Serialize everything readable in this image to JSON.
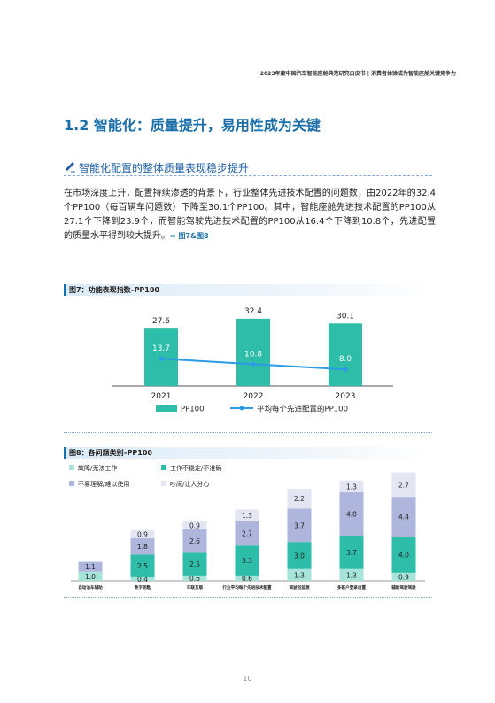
{
  "header": {
    "text": "2023年度中国汽车智能座舱典范研究白皮书  |  消费者体验成为智能座舱关键竞争力"
  },
  "section": {
    "title": "1.2 智能化：质量提升，易用性成为关键",
    "subheading": "智能化配置的整体质量表现稳步提升"
  },
  "body": {
    "paragraph": "在市场深度上升，配置持续渗透的背景下，行业整体先进技术配置的问题数，由2022年的32.4个PP100（每百辆车问题数）下降至30.1个PP100。其中，智能座舱先进技术配置的PP100从27.1个下降到23.9个，而智能驾驶先进技术配置的PP100从16.4个下降到10.8个，先进配置的质量水平得到较大提升。",
    "ref": "➡ 图7&图8"
  },
  "colors": {
    "bar_teal": "#2dbda8",
    "line_blue": "#2b9be6",
    "seg_fault": "#a6e3d9",
    "seg_unstable": "#2dbda8",
    "seg_hard": "#aeb6de",
    "seg_noise": "#e4e6f4"
  },
  "chart_data": [
    {
      "type": "bar",
      "title": "图7：功能表现指数–PP100",
      "categories": [
        "2021",
        "2022",
        "2023"
      ],
      "series": [
        {
          "name": "PP100",
          "values": [
            27.6,
            32.4,
            30.1
          ],
          "render": "bar"
        },
        {
          "name": "平均每个先进配置的PP100",
          "values": [
            13.7,
            10.8,
            8.0
          ],
          "render": "line"
        }
      ],
      "value_labels": {
        "PP100": [
          "27.6",
          "32.4",
          "30.1"
        ],
        "平均每个先进配置的PP100": [
          "13.7",
          "10.8",
          "8.0"
        ]
      },
      "legend": "bottom"
    },
    {
      "type": "bar",
      "stacked": true,
      "title": "图8：各问题类别–PP100",
      "categories": [
        "自动泊车辅助",
        "数字钥匙",
        "车联互联",
        "行业平均每个先进技术配置",
        "驾驶员监测",
        "多账户登录设置",
        "辅助驾驶驾驶"
      ],
      "series": [
        {
          "name": "故障/无法工作",
          "values": [
            1.0,
            0.4,
            0.6,
            0.6,
            1.3,
            1.3,
            0.9
          ]
        },
        {
          "name": "工作不稳定/不准确",
          "values": [
            null,
            2.5,
            2.5,
            3.3,
            3.0,
            3.7,
            4.0
          ]
        },
        {
          "name": "不易理解/难以使用",
          "values": [
            1.1,
            1.8,
            2.6,
            2.7,
            3.7,
            4.8,
            4.4
          ]
        },
        {
          "name": "吵闹/让人分心",
          "values": [
            null,
            0.9,
            0.9,
            1.3,
            2.2,
            1.3,
            2.7
          ]
        }
      ],
      "value_labels": {
        "故障/无法工作": [
          "1.0",
          "0.4",
          "0.6",
          "0.6",
          "1.3",
          "1.3",
          "0.9"
        ],
        "工作不稳定/不准确": [
          "",
          "2.5",
          "2.5",
          "3.3",
          "3.0",
          "3.7",
          "4.0"
        ],
        "不易理解/难以使用": [
          "1.1",
          "1.8",
          "2.6",
          "2.7",
          "3.7",
          "4.8",
          "4.4"
        ],
        "吵闹/让人分心": [
          "",
          "0.9",
          "0.9",
          "1.3",
          "2.2",
          "1.3",
          "2.7"
        ]
      },
      "legend": "top-left"
    }
  ],
  "page": {
    "number": "10"
  }
}
